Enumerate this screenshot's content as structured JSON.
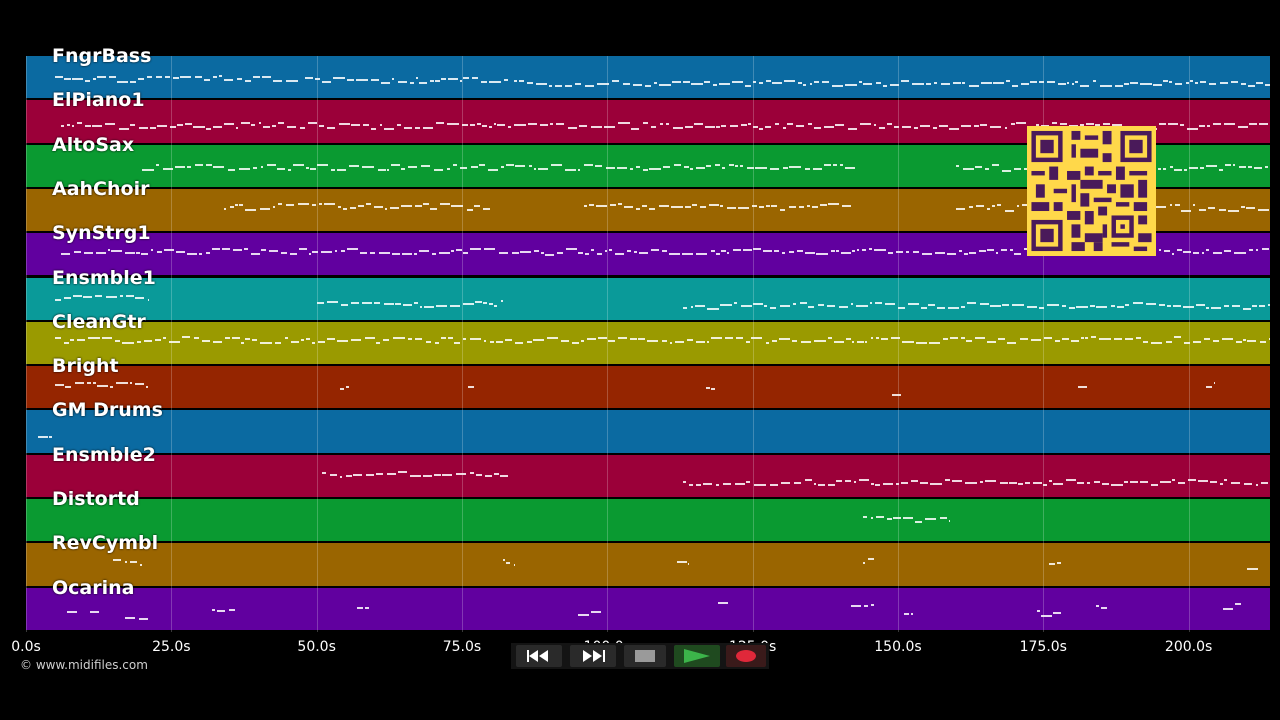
{
  "tracks": [
    {
      "name": "FngrBass",
      "color": "#0b6aa1"
    },
    {
      "name": "ElPiano1",
      "color": "#9b0039"
    },
    {
      "name": "AltoSax",
      "color": "#0a9a31"
    },
    {
      "name": "AahChoir",
      "color": "#9a6500"
    },
    {
      "name": "SynStrg1",
      "color": "#61009f"
    },
    {
      "name": "Ensmble1",
      "color": "#0a9a99"
    },
    {
      "name": "CleanGtr",
      "color": "#9a9a00"
    },
    {
      "name": "Bright",
      "color": "#952500"
    },
    {
      "name": "GM Drums",
      "color": "#0b6aa1"
    },
    {
      "name": "Ensmble2",
      "color": "#9b0039"
    },
    {
      "name": "Distortd",
      "color": "#0a9a31"
    },
    {
      "name": "RevCymbl",
      "color": "#9a6500"
    },
    {
      "name": "Ocarina",
      "color": "#61009f"
    }
  ],
  "timeline": {
    "ticks": [
      "0.0s",
      "25.0s",
      "50.0s",
      "75.0s",
      "100.0s",
      "125.0s",
      "150.0s",
      "175.0s",
      "200.0s"
    ],
    "tick_values": [
      0,
      25,
      50,
      75,
      100,
      125,
      150,
      175,
      200
    ],
    "range_seconds": [
      0,
      214
    ]
  },
  "copyright": "© www.midifiles.com",
  "transport": {
    "rewind": "rewind-icon",
    "fast_forward": "fast-forward-icon",
    "stop": "stop-icon",
    "play": "play-icon",
    "record": "record-icon"
  },
  "qr_code": "qr-code-icon",
  "note_segments": [
    {
      "track": 0,
      "spans": [
        [
          5,
          47
        ],
        [
          48,
          83
        ],
        [
          84,
          214
        ]
      ]
    },
    {
      "track": 1,
      "spans": [
        [
          6,
          214
        ]
      ]
    },
    {
      "track": 2,
      "spans": [
        [
          20,
          143
        ],
        [
          160,
          214
        ]
      ]
    },
    {
      "track": 3,
      "spans": [
        [
          34,
          80
        ],
        [
          96,
          142
        ],
        [
          160,
          214
        ]
      ]
    },
    {
      "track": 4,
      "spans": [
        [
          6,
          214
        ]
      ]
    },
    {
      "track": 5,
      "spans": [
        [
          5,
          21
        ],
        [
          50,
          82
        ],
        [
          113,
          214
        ]
      ]
    },
    {
      "track": 6,
      "spans": [
        [
          5,
          214
        ]
      ]
    },
    {
      "track": 7,
      "spans": [
        [
          5,
          21
        ],
        [
          54,
          55.5
        ],
        [
          76,
          77
        ],
        [
          117,
          118.5
        ],
        [
          149,
          150.5
        ],
        [
          181,
          182.5
        ],
        [
          203,
          204.5
        ]
      ]
    },
    {
      "track": 8,
      "spans": [
        [
          2,
          4.5
        ]
      ]
    },
    {
      "track": 9,
      "spans": [
        [
          51,
          83
        ],
        [
          113,
          214
        ]
      ]
    },
    {
      "track": 10,
      "spans": [
        [
          144,
          159
        ]
      ]
    },
    {
      "track": 11,
      "spans": [
        [
          15,
          20
        ],
        [
          82,
          84
        ],
        [
          112,
          114
        ],
        [
          144,
          146
        ],
        [
          176,
          178
        ],
        [
          210,
          212
        ]
      ]
    },
    {
      "track": 12,
      "spans": [
        [
          7,
          9
        ],
        [
          11,
          12.5
        ],
        [
          17,
          21
        ],
        [
          32,
          36
        ],
        [
          57,
          59
        ],
        [
          95,
          99
        ],
        [
          119,
          121
        ],
        [
          142,
          146
        ],
        [
          151,
          153
        ],
        [
          174,
          178
        ],
        [
          184,
          186
        ],
        [
          206,
          209
        ]
      ]
    }
  ]
}
